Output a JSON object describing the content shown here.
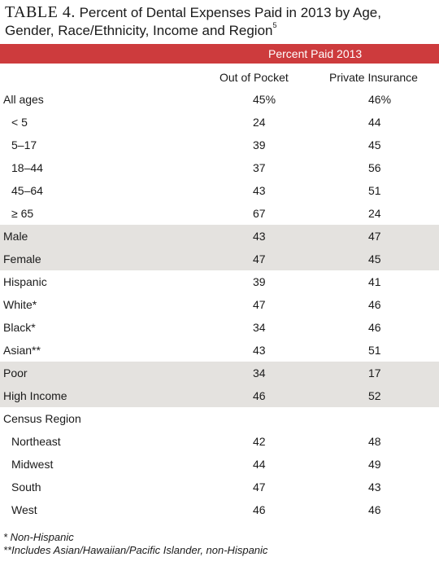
{
  "title": {
    "tag": "TABLE 4.",
    "text": " Percent of Dental Expenses Paid in 2013 by Age, Gender, Race/Ethnicity, Income and Region",
    "footnote_ref": "5"
  },
  "header": {
    "group": "Percent Paid 2013",
    "col1": "Out of Pocket",
    "col2": "Private Insurance"
  },
  "rows": [
    {
      "label": "All ages",
      "oop": "45%",
      "ins": "46%"
    },
    {
      "label": "< 5",
      "oop": "24",
      "ins": "44"
    },
    {
      "label": "5–17",
      "oop": "39",
      "ins": "45"
    },
    {
      "label": "18–44",
      "oop": "37",
      "ins": "56"
    },
    {
      "label": "45–64",
      "oop": "43",
      "ins": "51"
    },
    {
      "label": "≥ 65",
      "oop": "67",
      "ins": "24"
    },
    {
      "label": "Male",
      "oop": "43",
      "ins": "47"
    },
    {
      "label": "Female",
      "oop": "47",
      "ins": "45"
    },
    {
      "label": "Hispanic",
      "oop": "39",
      "ins": "41"
    },
    {
      "label": "White*",
      "oop": "47",
      "ins": "46"
    },
    {
      "label": "Black*",
      "oop": "34",
      "ins": "46"
    },
    {
      "label": "Asian**",
      "oop": "43",
      "ins": "51"
    },
    {
      "label": "Poor",
      "oop": "34",
      "ins": "17"
    },
    {
      "label": "High Income",
      "oop": "46",
      "ins": "52"
    },
    {
      "label": "Census Region",
      "oop": "",
      "ins": ""
    },
    {
      "label": "Northeast",
      "oop": "42",
      "ins": "48"
    },
    {
      "label": "Midwest",
      "oop": "44",
      "ins": "49"
    },
    {
      "label": "South",
      "oop": "47",
      "ins": "43"
    },
    {
      "label": "West",
      "oop": "46",
      "ins": "46"
    }
  ],
  "notes": {
    "note1": "* Non-Hispanic",
    "note2": "**Includes Asian/Hawaiian/Pacific Islander, non-Hispanic"
  }
}
